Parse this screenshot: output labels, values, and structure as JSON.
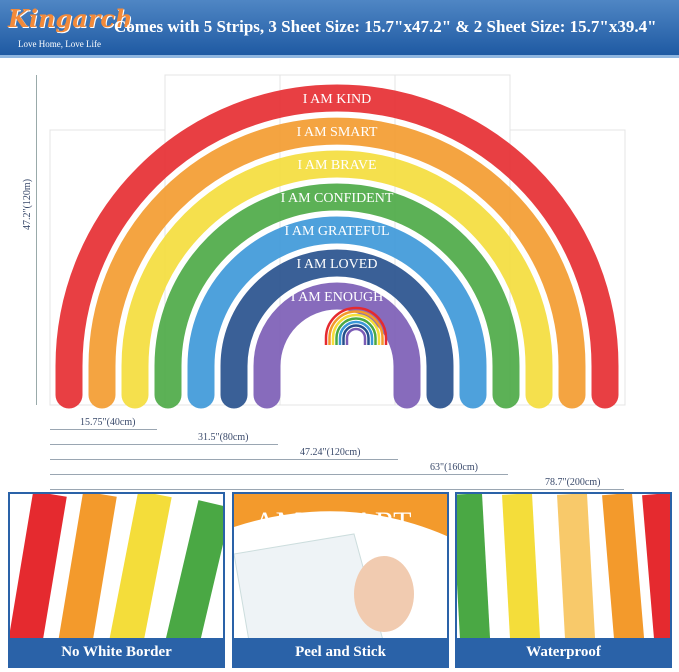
{
  "header": {
    "brand": "Kingarch",
    "tagline": "Love Home, Love Life",
    "title": "Comes with 5 Strips, 3 Sheet Size: 15.7\"x47.2\" & 2 Sheet Size: 15.7\"x39.4\""
  },
  "rainbow": {
    "labels": [
      "I AM KIND",
      "I AM SMART",
      "I AM BRAVE",
      "I AM CONFIDENT",
      "I AM GRATEFUL",
      "I AM LOVED",
      "I AM ENOUGH"
    ],
    "colors": [
      "#e52a2f",
      "#f39a2c",
      "#f4dd3a",
      "#4aa844",
      "#3b97d8",
      "#254f8c",
      "#7a5bb5"
    ]
  },
  "dimensions": {
    "height": "47.2\"(120m)",
    "widths": [
      "15.75\"(40cm)",
      "31.5\"(80cm)",
      "47.24\"(120cm)",
      "63\"(160cm)",
      "78.7\"(200cm)"
    ]
  },
  "panels": [
    {
      "label": "No White Border"
    },
    {
      "label": "Peel and Stick",
      "text": "AM SMART"
    },
    {
      "label": "Waterproof"
    }
  ]
}
